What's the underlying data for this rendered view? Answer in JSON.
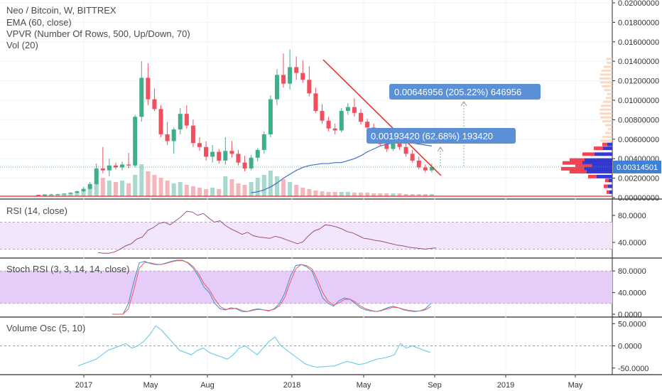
{
  "legend": {
    "symbol": "Neo / Bitcoin, W, BITTREX",
    "ema": "EMA (60, close)",
    "vpvr": "VPVR (Number Of Rows, 500, Up/Down, 70)",
    "vol": "Vol (20)"
  },
  "panes": {
    "rsi_title": "RSI (14, close)",
    "stoch_title": "Stoch RSI (3, 3, 14, 14, close)",
    "vo_title": "Volume Osc (5, 10)"
  },
  "colors": {
    "up": "#3fae8a",
    "down": "#ef4f5f",
    "ema": "#3d6fc9",
    "trendline": "#e8272a",
    "rsi_line": "#9c4f86",
    "rsi_band": "#f2e6fb",
    "stoch_k": "#3d8fd6",
    "stoch_d": "#ef5a5a",
    "stoch_band": "#e6ccf8",
    "vo_line": "#5fc6e6",
    "label_bg": "#5b8fd6",
    "price_tag": "#3e7fd8"
  },
  "annotations": {
    "measure_large": "0.00646956 (205.22%) 646956",
    "measure_small": "0.00193420 (62.68%) 193420"
  },
  "chart_data": [
    {
      "type": "candlestick",
      "pane": "price",
      "yticks": [
        "0.02000000",
        "0.01800000",
        "0.01600000",
        "0.01400000",
        "0.01200000",
        "0.01000000",
        "0.00800000",
        "0.00600000",
        "0.00400000",
        "0.00200000",
        "0.00000000"
      ],
      "ylim": [
        0,
        0.02
      ],
      "last_price": "0.00314501",
      "x_ticks": [
        "2017",
        "May",
        "Aug",
        "2018",
        "May",
        "Sep",
        "2019",
        "May"
      ],
      "candles": [
        {
          "o": 0.00028,
          "h": 0.0003,
          "l": 0.00024,
          "c": 0.00026
        },
        {
          "o": 0.00026,
          "h": 0.0003,
          "l": 0.00024,
          "c": 0.00029
        },
        {
          "o": 0.00029,
          "h": 0.0004,
          "l": 0.00027,
          "c": 0.00033
        },
        {
          "o": 0.00033,
          "h": 0.0004,
          "l": 0.0003,
          "c": 0.00036
        },
        {
          "o": 0.00036,
          "h": 0.00045,
          "l": 0.00034,
          "c": 0.0004
        },
        {
          "o": 0.0004,
          "h": 0.00055,
          "l": 0.00038,
          "c": 0.0005
        },
        {
          "o": 0.0005,
          "h": 0.0007,
          "l": 0.00045,
          "c": 0.00065
        },
        {
          "o": 0.00065,
          "h": 0.0011,
          "l": 0.0006,
          "c": 0.0009
        },
        {
          "o": 0.0009,
          "h": 0.0016,
          "l": 0.0008,
          "c": 0.0014
        },
        {
          "o": 0.0014,
          "h": 0.0035,
          "l": 0.0013,
          "c": 0.003
        },
        {
          "o": 0.003,
          "h": 0.0052,
          "l": 0.0025,
          "c": 0.0028
        },
        {
          "o": 0.0028,
          "h": 0.004,
          "l": 0.0022,
          "c": 0.0033
        },
        {
          "o": 0.0033,
          "h": 0.0036,
          "l": 0.0029,
          "c": 0.0031
        },
        {
          "o": 0.0031,
          "h": 0.0037,
          "l": 0.0028,
          "c": 0.0034
        },
        {
          "o": 0.0034,
          "h": 0.0046,
          "l": 0.003,
          "c": 0.0033
        },
        {
          "o": 0.0033,
          "h": 0.0085,
          "l": 0.0031,
          "c": 0.0083
        },
        {
          "o": 0.0083,
          "h": 0.014,
          "l": 0.0078,
          "c": 0.0123
        },
        {
          "o": 0.0123,
          "h": 0.0138,
          "l": 0.0095,
          "c": 0.0101
        },
        {
          "o": 0.0101,
          "h": 0.0112,
          "l": 0.0089,
          "c": 0.0091
        },
        {
          "o": 0.0091,
          "h": 0.0095,
          "l": 0.0062,
          "c": 0.0065
        },
        {
          "o": 0.0065,
          "h": 0.0078,
          "l": 0.0054,
          "c": 0.0058
        },
        {
          "o": 0.0058,
          "h": 0.0072,
          "l": 0.0045,
          "c": 0.007
        },
        {
          "o": 0.007,
          "h": 0.0092,
          "l": 0.0065,
          "c": 0.0086
        },
        {
          "o": 0.0086,
          "h": 0.0095,
          "l": 0.0071,
          "c": 0.0074
        },
        {
          "o": 0.0074,
          "h": 0.008,
          "l": 0.0052,
          "c": 0.0056
        },
        {
          "o": 0.0056,
          "h": 0.0062,
          "l": 0.0048,
          "c": 0.0052
        },
        {
          "o": 0.0052,
          "h": 0.0058,
          "l": 0.0038,
          "c": 0.0042
        },
        {
          "o": 0.0042,
          "h": 0.0054,
          "l": 0.0036,
          "c": 0.0047
        },
        {
          "o": 0.0047,
          "h": 0.005,
          "l": 0.0035,
          "c": 0.0038
        },
        {
          "o": 0.0038,
          "h": 0.0062,
          "l": 0.0034,
          "c": 0.0048
        },
        {
          "o": 0.0048,
          "h": 0.0058,
          "l": 0.0041,
          "c": 0.0045
        },
        {
          "o": 0.0045,
          "h": 0.0049,
          "l": 0.0033,
          "c": 0.0036
        },
        {
          "o": 0.0036,
          "h": 0.0043,
          "l": 0.0027,
          "c": 0.003
        },
        {
          "o": 0.003,
          "h": 0.0044,
          "l": 0.0028,
          "c": 0.0041
        },
        {
          "o": 0.0041,
          "h": 0.0051,
          "l": 0.0037,
          "c": 0.0049
        },
        {
          "o": 0.0049,
          "h": 0.0068,
          "l": 0.0045,
          "c": 0.0065
        },
        {
          "o": 0.0065,
          "h": 0.0105,
          "l": 0.0062,
          "c": 0.0101
        },
        {
          "o": 0.0101,
          "h": 0.0132,
          "l": 0.0095,
          "c": 0.0126
        },
        {
          "o": 0.0126,
          "h": 0.0148,
          "l": 0.0113,
          "c": 0.0117
        },
        {
          "o": 0.0117,
          "h": 0.0152,
          "l": 0.0111,
          "c": 0.0134
        },
        {
          "o": 0.0134,
          "h": 0.0145,
          "l": 0.0121,
          "c": 0.0128
        },
        {
          "o": 0.0128,
          "h": 0.0141,
          "l": 0.0118,
          "c": 0.0121
        },
        {
          "o": 0.0121,
          "h": 0.0135,
          "l": 0.0104,
          "c": 0.0107
        },
        {
          "o": 0.0107,
          "h": 0.0113,
          "l": 0.0087,
          "c": 0.0089
        },
        {
          "o": 0.0089,
          "h": 0.0096,
          "l": 0.0076,
          "c": 0.0079
        },
        {
          "o": 0.0079,
          "h": 0.0083,
          "l": 0.0068,
          "c": 0.0071
        },
        {
          "o": 0.0071,
          "h": 0.0076,
          "l": 0.0065,
          "c": 0.0069
        },
        {
          "o": 0.0069,
          "h": 0.0092,
          "l": 0.0067,
          "c": 0.0089
        },
        {
          "o": 0.0089,
          "h": 0.0097,
          "l": 0.0085,
          "c": 0.0093
        },
        {
          "o": 0.0093,
          "h": 0.0102,
          "l": 0.0083,
          "c": 0.0087
        },
        {
          "o": 0.0087,
          "h": 0.0091,
          "l": 0.0075,
          "c": 0.0078
        },
        {
          "o": 0.0078,
          "h": 0.0081,
          "l": 0.0069,
          "c": 0.0072
        },
        {
          "o": 0.0072,
          "h": 0.0076,
          "l": 0.0062,
          "c": 0.0066
        },
        {
          "o": 0.0066,
          "h": 0.0071,
          "l": 0.0053,
          "c": 0.0055
        },
        {
          "o": 0.0055,
          "h": 0.0061,
          "l": 0.0047,
          "c": 0.005
        },
        {
          "o": 0.005,
          "h": 0.0063,
          "l": 0.0048,
          "c": 0.006
        },
        {
          "o": 0.006,
          "h": 0.0064,
          "l": 0.0049,
          "c": 0.0052
        },
        {
          "o": 0.0052,
          "h": 0.0056,
          "l": 0.0042,
          "c": 0.0045
        },
        {
          "o": 0.0045,
          "h": 0.0049,
          "l": 0.0036,
          "c": 0.0038
        },
        {
          "o": 0.0038,
          "h": 0.0042,
          "l": 0.0029,
          "c": 0.0031
        },
        {
          "o": 0.0031,
          "h": 0.0034,
          "l": 0.0026,
          "c": 0.0028
        },
        {
          "o": 0.0028,
          "h": 0.0035,
          "l": 0.0026,
          "c": 0.00314
        }
      ],
      "ema_values": [
        0.0005,
        0.0006,
        0.0008,
        0.0011,
        0.0015,
        0.002,
        0.0024,
        0.0028,
        0.0031,
        0.0033,
        0.0034,
        0.0035,
        0.0035,
        0.0036,
        0.0036,
        0.0038,
        0.004,
        0.0043,
        0.0047,
        0.005,
        0.0053,
        0.0055,
        0.0056,
        0.0057,
        0.0057,
        0.0056,
        0.0055,
        0.0054,
        0.0053
      ],
      "ema_start_index": 33,
      "volume_up": [
        0.2,
        0.3,
        0.2,
        0.3,
        0.4,
        0.5,
        0.7,
        1.0,
        1.5,
        2.0,
        2.6,
        2.2,
        2.0,
        2.2,
        1.8,
        3.0,
        4.5,
        3.5,
        3.0,
        2.6,
        2.2,
        1.8,
        2.0,
        1.6,
        1.4,
        1.2,
        1.0,
        1.2,
        1.0,
        2.8,
        2.4,
        1.8,
        1.6,
        2.0,
        2.6,
        3.0,
        3.6,
        2.8,
        2.4,
        2.0,
        1.6,
        1.2,
        1.0,
        0.8,
        0.7,
        0.6,
        0.6,
        0.6,
        0.6,
        0.5,
        0.5,
        0.5,
        0.4,
        0.4,
        0.4,
        0.4,
        0.4,
        0.3,
        0.3,
        0.3,
        0.3,
        0.3
      ]
    },
    {
      "type": "line",
      "pane": "rsi",
      "title": "RSI (14, close)",
      "yticks": [
        "80.0000",
        "40.0000"
      ],
      "ylim": [
        20,
        100
      ],
      "band": [
        30,
        70
      ],
      "values": [
        25,
        24,
        24,
        26,
        30,
        35,
        38,
        45,
        48,
        58,
        62,
        68,
        70,
        66,
        72,
        78,
        86,
        85,
        80,
        83,
        76,
        70,
        72,
        65,
        60,
        56,
        52,
        55,
        50,
        48,
        47,
        46,
        49,
        47,
        44,
        41,
        38,
        41,
        50,
        57,
        60,
        66,
        65,
        63,
        60,
        56,
        54,
        50,
        46,
        45,
        43,
        42,
        40,
        38,
        36,
        35,
        33,
        32,
        31,
        30,
        31,
        32
      ]
    },
    {
      "type": "line",
      "pane": "stoch_rsi",
      "title": "Stoch RSI (3, 3, 14, 14, close)",
      "yticks": [
        "80.0000",
        "40.0000",
        "0.0000"
      ],
      "ylim": [
        0,
        100
      ],
      "band": [
        20,
        80
      ],
      "series": [
        {
          "values": [
            0,
            0,
            0,
            20,
            60,
            95,
            98,
            94,
            92,
            92,
            95,
            98,
            100,
            100,
            95,
            85,
            70,
            50,
            40,
            20,
            10,
            8,
            12,
            10,
            5,
            5,
            8,
            10,
            8,
            6,
            10,
            20,
            40,
            70,
            90,
            92,
            88,
            80,
            55,
            30,
            20,
            15,
            25,
            30,
            28,
            20,
            12,
            8,
            6,
            5,
            8,
            12,
            15,
            12,
            8,
            6,
            5,
            6,
            10,
            20
          ]
        },
        {
          "values": [
            0,
            0,
            0,
            10,
            45,
            85,
            96,
            95,
            93,
            92,
            94,
            97,
            99,
            99,
            96,
            88,
            75,
            57,
            45,
            28,
            14,
            9,
            10,
            11,
            7,
            5,
            7,
            9,
            8,
            7,
            9,
            16,
            32,
            60,
            84,
            92,
            90,
            84,
            64,
            40,
            24,
            17,
            21,
            27,
            28,
            23,
            15,
            10,
            7,
            5,
            7,
            10,
            13,
            12,
            9,
            7,
            6,
            6,
            8,
            14
          ]
        }
      ]
    },
    {
      "type": "line",
      "pane": "volume_osc",
      "title": "Volume Osc (5, 10)",
      "yticks": [
        "50.0000",
        "0.0000",
        "-50.0000"
      ],
      "ylim": [
        -60,
        60
      ],
      "values": [
        -45,
        -40,
        -35,
        -30,
        -20,
        -10,
        -5,
        0,
        5,
        -5,
        0,
        10,
        25,
        45,
        35,
        20,
        5,
        -10,
        -15,
        -20,
        -10,
        -5,
        -15,
        -20,
        -25,
        -30,
        -20,
        -5,
        0,
        -10,
        -20,
        -5,
        10,
        20,
        0,
        -10,
        -20,
        -30,
        -40,
        -45,
        -48,
        -47,
        -46,
        -45,
        -40,
        -35,
        -38,
        -42,
        -40,
        -35,
        -30,
        -28,
        -25,
        -20,
        5,
        -5,
        0,
        -5,
        -10,
        -15
      ]
    }
  ]
}
